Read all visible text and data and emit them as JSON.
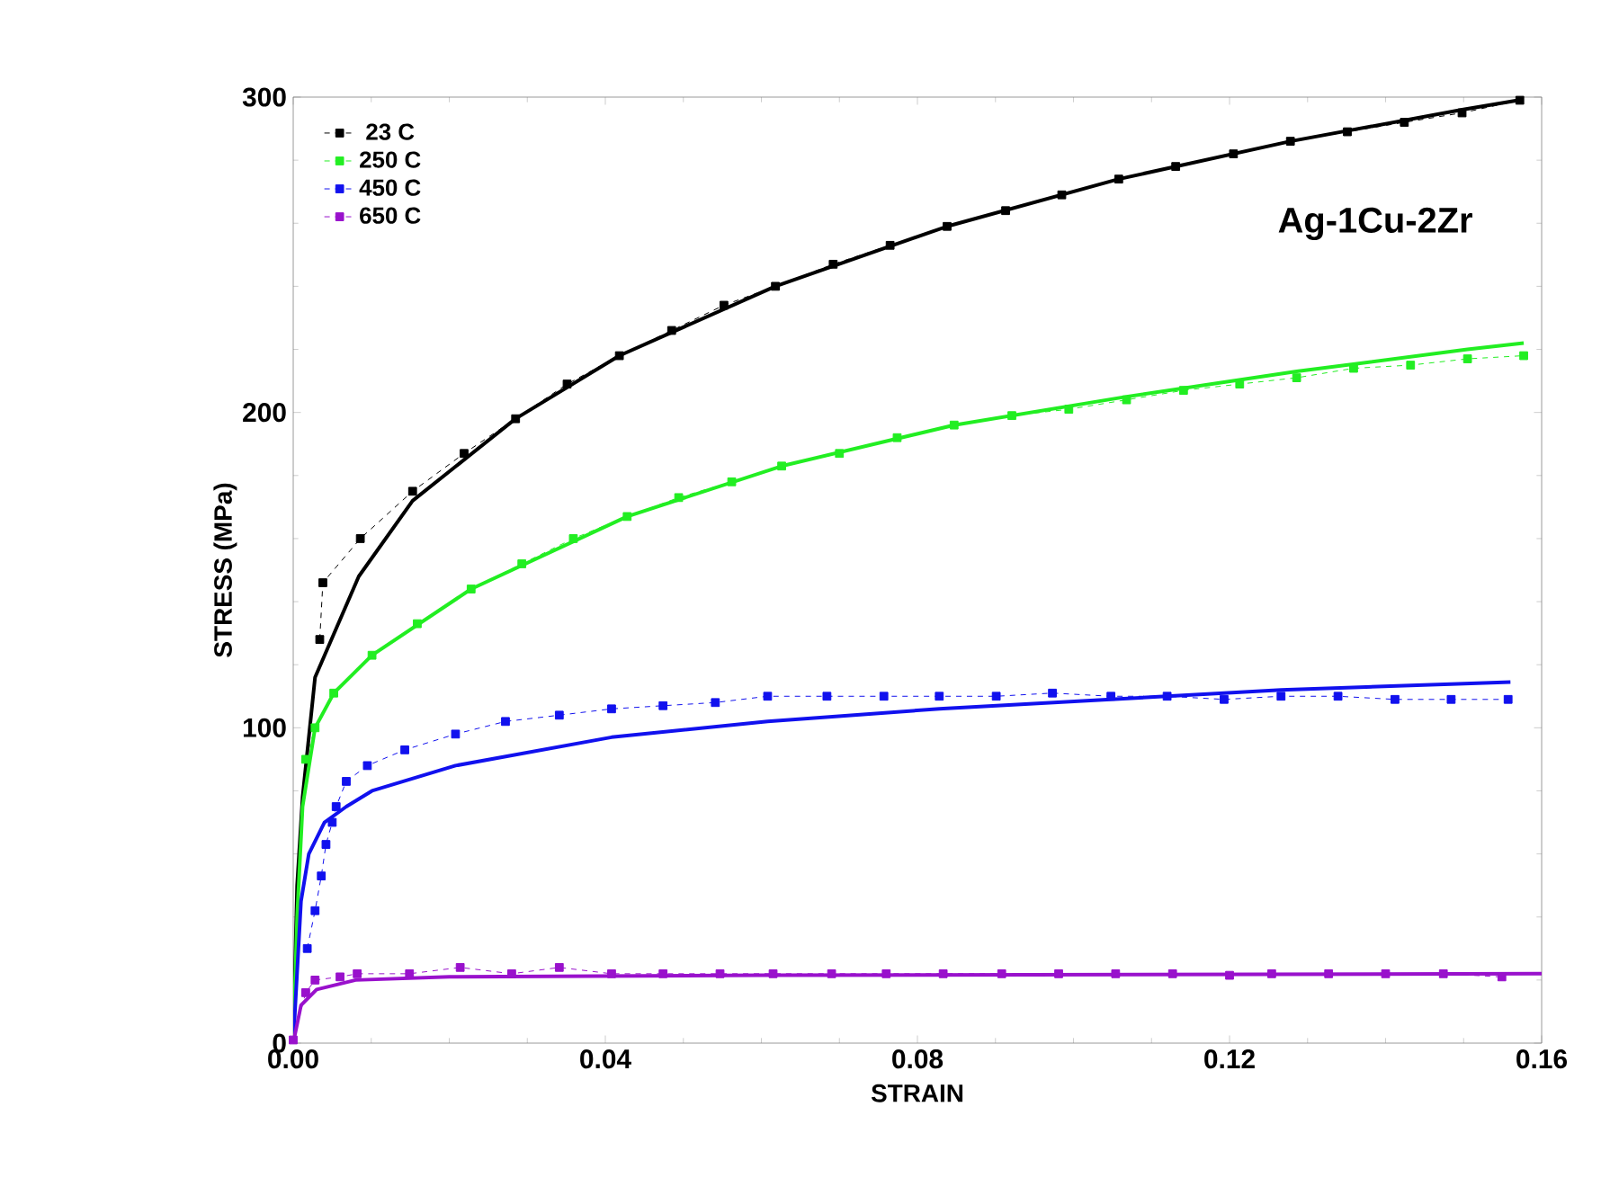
{
  "chart_data": {
    "type": "line",
    "xlabel": "STRAIN",
    "ylabel": "STRESS (MPa)",
    "annotations": [
      "Ag-1Cu-2Zr"
    ],
    "xlim": [
      0,
      0.16
    ],
    "ylim": [
      0,
      300
    ],
    "xticks": [
      {
        "value": 0,
        "label": "0.00"
      },
      {
        "value": 0.04,
        "label": "0.04"
      },
      {
        "value": 0.08,
        "label": "0.08"
      },
      {
        "value": 0.12,
        "label": "0.12"
      },
      {
        "value": 0.16,
        "label": "0.16"
      }
    ],
    "yticks": [
      0,
      100,
      200,
      300
    ],
    "legend": "top left",
    "grid": false,
    "series": [
      {
        "name": "23 C",
        "color": "#000000",
        "marker": "square",
        "line_style": "dashed",
        "x": [
          0.0034,
          0.0038,
          0.0086,
          0.0153,
          0.0219,
          0.0285,
          0.0351,
          0.0418,
          0.0485,
          0.0552,
          0.0618,
          0.0692,
          0.0765,
          0.0838,
          0.0913,
          0.0985,
          0.1058,
          0.1131,
          0.1205,
          0.1278,
          0.1351,
          0.1424,
          0.1498,
          0.1572
        ],
        "values": [
          128,
          146,
          160,
          175,
          187,
          198,
          209,
          218,
          226,
          234,
          240,
          247,
          253,
          259,
          264,
          269,
          274,
          278,
          282,
          286,
          289,
          292,
          295,
          299
        ]
      },
      {
        "name": "250 C",
        "color": "#22ee22",
        "marker": "square",
        "line_style": "dashed",
        "x": [
          0.0016,
          0.0028,
          0.0052,
          0.0101,
          0.0159,
          0.0228,
          0.0293,
          0.0359,
          0.0428,
          0.0494,
          0.0562,
          0.0626,
          0.07,
          0.0774,
          0.0847,
          0.0921,
          0.0994,
          0.1068,
          0.1141,
          0.1213,
          0.1286,
          0.1359,
          0.1432,
          0.1505,
          0.1577
        ],
        "values": [
          90,
          100,
          111,
          123,
          133,
          144,
          152,
          160,
          167,
          173,
          178,
          183,
          187,
          192,
          196,
          199,
          201,
          204,
          207,
          209,
          211,
          214,
          215,
          217,
          218
        ]
      },
      {
        "name": "450 C",
        "color": "#1111ee",
        "marker": "square",
        "line_style": "dashed",
        "x": [
          0.0018,
          0.0028,
          0.0036,
          0.0042,
          0.005,
          0.0055,
          0.0068,
          0.0095,
          0.0143,
          0.0208,
          0.0272,
          0.0341,
          0.0408,
          0.0474,
          0.0541,
          0.0608,
          0.0684,
          0.0757,
          0.0828,
          0.0901,
          0.0973,
          0.1048,
          0.112,
          0.1193,
          0.1266,
          0.1339,
          0.1412,
          0.1484,
          0.1557
        ],
        "values": [
          30,
          42,
          53,
          63,
          70,
          75,
          83,
          88,
          93,
          98,
          102,
          104,
          106,
          107,
          108,
          110,
          110,
          110,
          110,
          110,
          111,
          110,
          110,
          109,
          110,
          110,
          109,
          109,
          109
        ]
      },
      {
        "name": "650 C",
        "color": "#9911cc",
        "marker": "square",
        "line_style": "dashed",
        "x": [
          0,
          0.0016,
          0.0028,
          0.006,
          0.0082,
          0.0149,
          0.0214,
          0.028,
          0.0341,
          0.0408,
          0.0474,
          0.0547,
          0.0615,
          0.069,
          0.076,
          0.0833,
          0.0908,
          0.0981,
          0.1054,
          0.1127,
          0.12,
          0.1254,
          0.1327,
          0.14,
          0.1474,
          0.1549
        ],
        "values": [
          1,
          16,
          20,
          21,
          22,
          22,
          24,
          22,
          24,
          22,
          22,
          22,
          22,
          22,
          22,
          22,
          22,
          22,
          22,
          22,
          21.5,
          22,
          22,
          22,
          22,
          21
        ]
      },
      {
        "color": "#000000",
        "marker": "none",
        "line_style": "solid",
        "x": [
          0,
          0.0005,
          0.0012,
          0.0028,
          0.0084,
          0.0153,
          0.0285,
          0.0418,
          0.0618,
          0.0838,
          0.1058,
          0.1278,
          0.1498,
          0.157
        ],
        "values": [
          0,
          50,
          78,
          116,
          148,
          172,
          198,
          218,
          240,
          259,
          274,
          286,
          296,
          299
        ]
      },
      {
        "color": "#22ee22",
        "marker": "none",
        "line_style": "solid",
        "x": [
          0,
          0.0005,
          0.0012,
          0.0028,
          0.0052,
          0.0101,
          0.0228,
          0.0428,
          0.0626,
          0.0847,
          0.1068,
          0.1286,
          0.1505,
          0.1577
        ],
        "values": [
          0,
          40,
          75,
          100,
          111,
          123,
          144,
          167,
          183,
          196,
          205,
          213,
          220,
          222
        ]
      },
      {
        "color": "#1111ee",
        "marker": "none",
        "line_style": "solid",
        "x": [
          0,
          0.001,
          0.002,
          0.004,
          0.0068,
          0.0101,
          0.0208,
          0.0408,
          0.0608,
          0.0828,
          0.1048,
          0.1266,
          0.156
        ],
        "values": [
          0,
          45,
          60,
          70,
          75,
          80,
          88,
          97,
          102,
          106,
          109,
          112,
          114.5
        ]
      },
      {
        "color": "#9911cc",
        "marker": "none",
        "line_style": "solid",
        "x": [
          0,
          0.001,
          0.003,
          0.008,
          0.02,
          0.06,
          0.16
        ],
        "values": [
          0,
          12,
          17,
          20,
          21,
          21.5,
          22
        ]
      }
    ]
  }
}
